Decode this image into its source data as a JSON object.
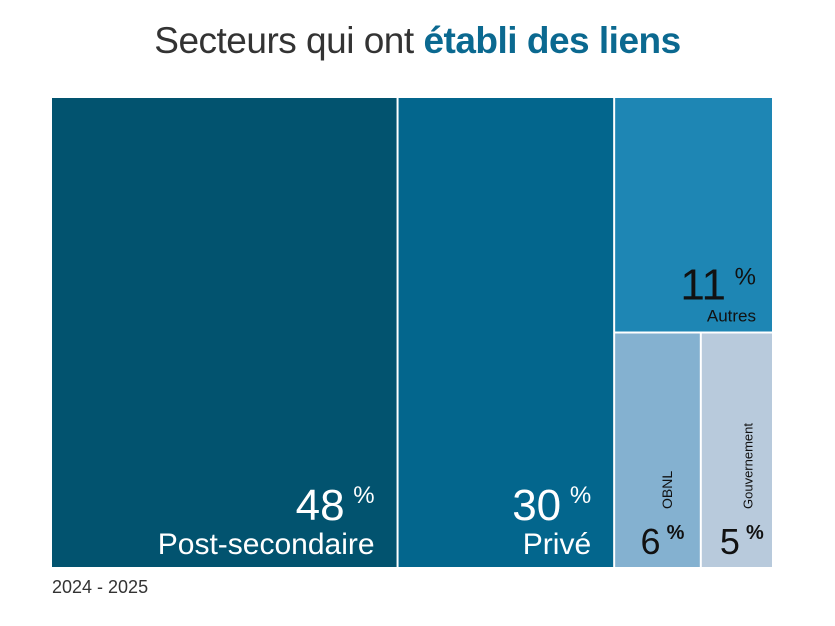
{
  "title": {
    "regular": "Secteurs qui ont ",
    "bold": "établi des liens"
  },
  "footnote": "2024 - 2025",
  "chart_data": {
    "type": "treemap",
    "title": "Secteurs qui ont établi des liens",
    "period": "2024 - 2025",
    "unit": "%",
    "items": [
      {
        "label": "Post-secondaire",
        "value": 48,
        "value_text": "48",
        "color": "#02536f",
        "text_color": "#ffffff"
      },
      {
        "label": "Privé",
        "value": 30,
        "value_text": "30",
        "color": "#03668d",
        "text_color": "#ffffff"
      },
      {
        "label": "Autres",
        "value": 11,
        "value_text": "11",
        "color": "#1e86b4",
        "text_color": "#111111"
      },
      {
        "label": "OBNL",
        "value": 6,
        "value_text": "6",
        "color": "#84b1d0",
        "text_color": "#111111"
      },
      {
        "label": "Gouvernement",
        "value": 5,
        "value_text": "5",
        "color": "#b8cadc",
        "text_color": "#111111"
      }
    ]
  }
}
